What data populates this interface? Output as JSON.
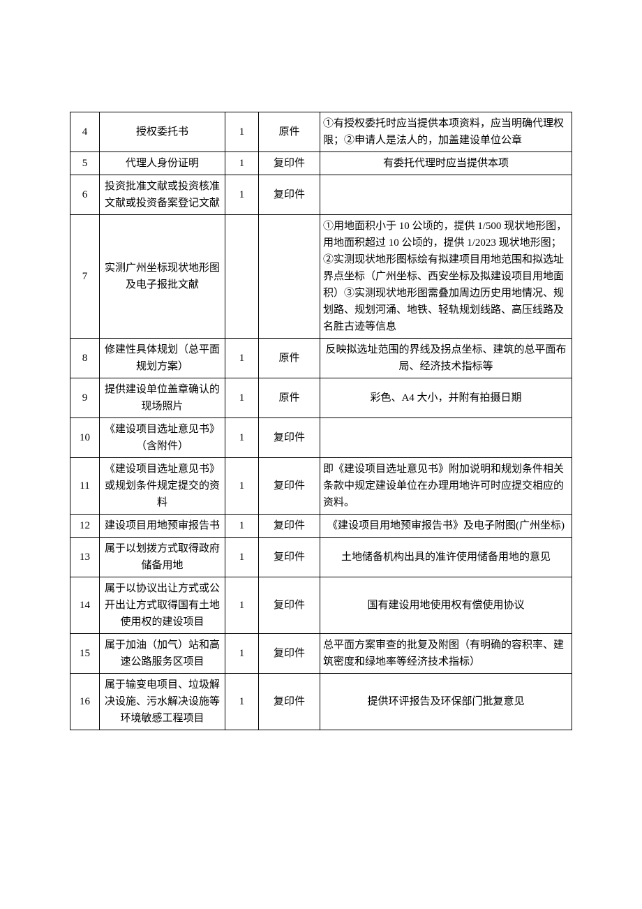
{
  "table": {
    "columns": {
      "num_width": 42,
      "name_width": 180,
      "qty_width": 48,
      "type_width": 88
    },
    "border_color": "#000000",
    "background_color": "#ffffff",
    "text_color": "#000000",
    "font_size": 15,
    "rows": [
      {
        "num": "4",
        "name": "授权委托书",
        "qty": "1",
        "type": "原件",
        "note": "①有授权委托时应当提供本项资料，应当明确代理权限；②申请人是法人的，加盖建设单位公章",
        "note_align": "left"
      },
      {
        "num": "5",
        "name": "代理人身份证明",
        "qty": "1",
        "type": "复印件",
        "note": "有委托代理时应当提供本项",
        "note_align": "center"
      },
      {
        "num": "6",
        "name": "投资批准文献或投资核准文献或投资备案登记文献",
        "qty": "1",
        "type": "复印件",
        "note": "",
        "note_align": "empty"
      },
      {
        "num": "7",
        "name": "实测广州坐标现状地形图及电子报批文献",
        "qty": "",
        "type": "",
        "note": "①用地面积小于 10 公顷的，提供 1/500 现状地形图，用地面积超过 10 公顷的，提供 1/2023 现状地形图；②实测现状地形图标绘有拟建项目用地范围和拟选址界点坐标（广州坐标、西安坐标及拟建设项目用地面积）③实测现状地形图需叠加周边历史用地情况、规划路、规划河涌、地铁、轻轨规划线路、高压线路及名胜古迹等信息",
        "note_align": "left"
      },
      {
        "num": "8",
        "name": "修建性具体规划（总平面规划方案）",
        "qty": "1",
        "type": "原件",
        "note": "反映拟选址范围的界线及拐点坐标、建筑的总平面布局、经济技术指标等",
        "note_align": "center"
      },
      {
        "num": "9",
        "name": "提供建设单位盖章确认的现场照片",
        "qty": "1",
        "type": "原件",
        "note": "彩色、A4 大小，并附有拍摄日期",
        "note_align": "center"
      },
      {
        "num": "10",
        "name": "《建设项目选址意见书》（含附件）",
        "qty": "1",
        "type": "复印件",
        "note": "",
        "note_align": "empty"
      },
      {
        "num": "11",
        "name": "《建设项目选址意见书》或规划条件规定提交的资料",
        "qty": "1",
        "type": "复印件",
        "note": "即《建设项目选址意见书》附加说明和规划条件相关条款中规定建设单位在办理用地许可时应提交相应的资料。",
        "note_align": "left"
      },
      {
        "num": "12",
        "name": "建设项目用地预审报告书",
        "qty": "1",
        "type": "复印件",
        "note": "《建设项目用地预审报告书》及电子附图(广州坐标)",
        "note_align": "center"
      },
      {
        "num": "13",
        "name": "属于以划拨方式取得政府储备用地",
        "qty": "1",
        "type": "复印件",
        "note": "土地储备机构出具的准许使用储备用地的意见",
        "note_align": "center"
      },
      {
        "num": "14",
        "name": "属于以协议出让方式或公开出让方式取得国有土地使用权的建设项目",
        "qty": "1",
        "type": "复印件",
        "note": "国有建设用地使用权有偿使用协议",
        "note_align": "center"
      },
      {
        "num": "15",
        "name": "属于加油（加气）站和高速公路服务区项目",
        "qty": "1",
        "type": "复印件",
        "note": "总平面方案审查的批复及附图（有明确的容积率、建筑密度和绿地率等经济技术指标）",
        "note_align": "left"
      },
      {
        "num": "16",
        "name": "属于输变电项目、垃圾解决设施、污水解决设施等环境敏感工程项目",
        "qty": "1",
        "type": "复印件",
        "note": "提供环评报告及环保部门批复意见",
        "note_align": "center"
      }
    ]
  }
}
